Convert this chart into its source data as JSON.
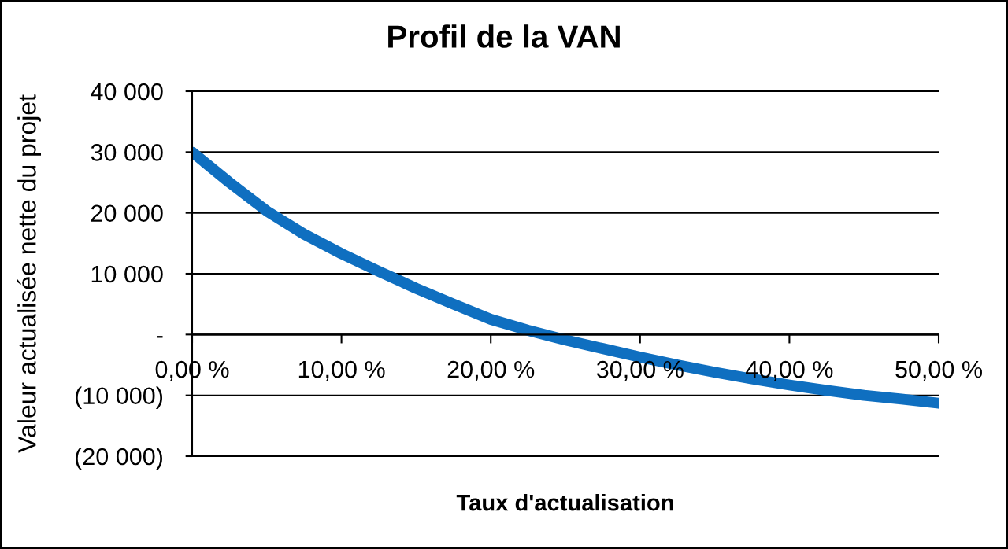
{
  "chart_data": {
    "type": "line",
    "title": "Profil de la VAN",
    "xlabel": "Taux d'actualisation",
    "ylabel": "Valeur actualisée nette du projet",
    "x": [
      0,
      2.5,
      5,
      7.5,
      10,
      12.5,
      15,
      17.5,
      20,
      22.5,
      25,
      27.5,
      30,
      32.5,
      35,
      37.5,
      40,
      42.5,
      45,
      47.5,
      50
    ],
    "series": [
      {
        "color": "#0f6fc0",
        "values": [
          30000,
          25000,
          20300,
          16500,
          13300,
          10400,
          7600,
          5000,
          2500,
          700,
          -900,
          -2300,
          -3700,
          -5000,
          -6200,
          -7300,
          -8300,
          -9200,
          -10000,
          -10600,
          -11300
        ]
      }
    ],
    "xlim": [
      0,
      50
    ],
    "xticks": [
      {
        "value": 0,
        "label": "0,00 %"
      },
      {
        "value": 10,
        "label": "10,00 %"
      },
      {
        "value": 20,
        "label": "20,00 %"
      },
      {
        "value": 30,
        "label": "30,00 %"
      },
      {
        "value": 40,
        "label": "40,00 %"
      },
      {
        "value": 50,
        "label": "50,00 %"
      }
    ],
    "ylim": [
      -20000,
      40000
    ],
    "yticks": [
      {
        "value": -20000,
        "label": "(20 000)"
      },
      {
        "value": -10000,
        "label": "(10 000)"
      },
      {
        "value": 0,
        "label": "-"
      },
      {
        "value": 10000,
        "label": "10 000"
      },
      {
        "value": 20000,
        "label": "20 000"
      },
      {
        "value": 30000,
        "label": "30 000"
      },
      {
        "value": 40000,
        "label": "40 000"
      }
    ],
    "grid": "y",
    "line_style": "solid"
  }
}
